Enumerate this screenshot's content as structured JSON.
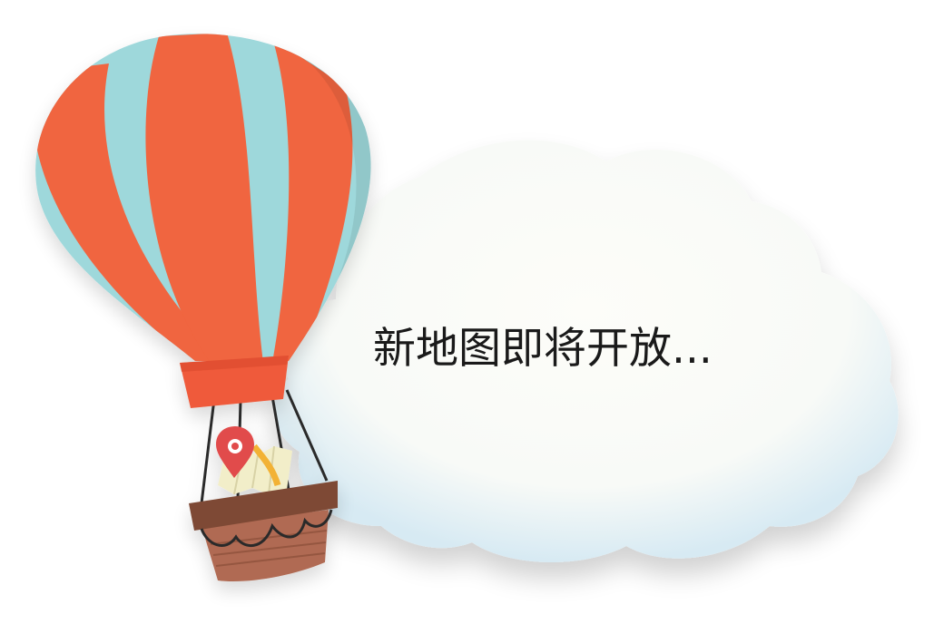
{
  "message": "新地图即将开放...",
  "colors": {
    "balloon_red": "#F0653F",
    "balloon_blue": "#9ED8DB",
    "basket_brown": "#8A5A44",
    "pin_red": "#E14B4B",
    "cloud": "#FBFBF7"
  },
  "icons": {
    "balloon": "hot-air-balloon-icon",
    "pin": "map-pin-icon",
    "map": "folded-map-icon",
    "cloud": "cloud-icon"
  }
}
